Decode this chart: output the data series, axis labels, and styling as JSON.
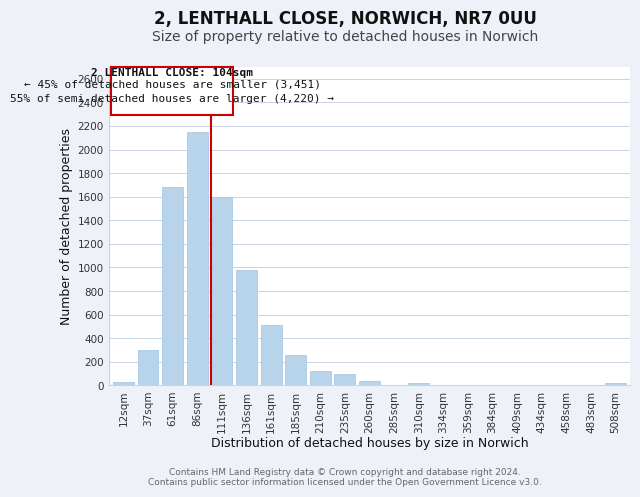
{
  "title": "2, LENTHALL CLOSE, NORWICH, NR7 0UU",
  "subtitle": "Size of property relative to detached houses in Norwich",
  "xlabel": "Distribution of detached houses by size in Norwich",
  "ylabel": "Number of detached properties",
  "bar_labels": [
    "12sqm",
    "37sqm",
    "61sqm",
    "86sqm",
    "111sqm",
    "136sqm",
    "161sqm",
    "185sqm",
    "210sqm",
    "235sqm",
    "260sqm",
    "285sqm",
    "310sqm",
    "334sqm",
    "359sqm",
    "384sqm",
    "409sqm",
    "434sqm",
    "458sqm",
    "483sqm",
    "508sqm"
  ],
  "bar_heights": [
    25,
    300,
    1680,
    2150,
    1600,
    975,
    510,
    255,
    125,
    100,
    35,
    5,
    20,
    5,
    5,
    5,
    5,
    5,
    5,
    5,
    20
  ],
  "bar_color": "#b8d4ea",
  "bar_edge_color": "#aac8e4",
  "highlight_color": "#cc0000",
  "vline_x_index": 4,
  "ylim": [
    0,
    2700
  ],
  "yticks": [
    0,
    200,
    400,
    600,
    800,
    1000,
    1200,
    1400,
    1600,
    1800,
    2000,
    2200,
    2400,
    2600
  ],
  "annotation_title": "2 LENTHALL CLOSE: 104sqm",
  "annotation_line1": "← 45% of detached houses are smaller (3,451)",
  "annotation_line2": "55% of semi-detached houses are larger (4,220) →",
  "footer_line1": "Contains HM Land Registry data © Crown copyright and database right 2024.",
  "footer_line2": "Contains public sector information licensed under the Open Government Licence v3.0.",
  "background_color": "#eef2f8",
  "plot_background": "#ffffff",
  "grid_color": "#c8d4e4",
  "title_fontsize": 12,
  "subtitle_fontsize": 10,
  "axis_label_fontsize": 9,
  "tick_fontsize": 7.5,
  "annotation_box_edge": "#cc0000",
  "footer_fontsize": 6.5
}
